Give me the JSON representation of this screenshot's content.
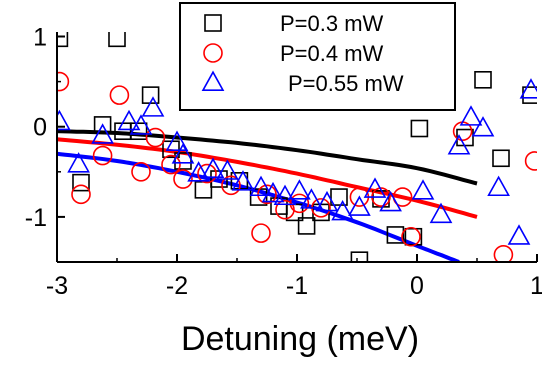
{
  "chart_data": {
    "type": "scatter",
    "xlabel": "Detuning (meV)",
    "ylabel": "",
    "xlim": [
      -3,
      1
    ],
    "ylim": [
      -1.5,
      1.05
    ],
    "xticks": [
      -3,
      -2,
      -1,
      0,
      1
    ],
    "xtick_labels": [
      "-3",
      "-2",
      "-1",
      "0",
      "1"
    ],
    "yticks": [
      -1,
      0,
      1
    ],
    "ytick_labels": [
      "-1",
      "0",
      "1"
    ],
    "legend_position": "top-center",
    "series": [
      {
        "name": "P=0.3 mW",
        "marker": "square",
        "color": "#000000",
        "points": [
          [
            -2.98,
            0.98
          ],
          [
            -2.5,
            0.98
          ],
          [
            -2.8,
            -0.62
          ],
          [
            -2.62,
            0.02
          ],
          [
            -2.45,
            -0.05
          ],
          [
            -2.32,
            -0.05
          ],
          [
            -2.22,
            0.35
          ],
          [
            -2.05,
            -0.25
          ],
          [
            -1.95,
            -0.38
          ],
          [
            -1.78,
            -0.7
          ],
          [
            -1.65,
            -0.58
          ],
          [
            -1.48,
            -0.6
          ],
          [
            -1.32,
            -0.78
          ],
          [
            -1.15,
            -0.88
          ],
          [
            -1.02,
            -0.95
          ],
          [
            -0.92,
            -1.1
          ],
          [
            -0.8,
            -0.95
          ],
          [
            -0.65,
            -0.78
          ],
          [
            -0.48,
            -1.48
          ],
          [
            -0.3,
            -0.8
          ],
          [
            -0.18,
            -1.2
          ],
          [
            -0.03,
            -1.22
          ],
          [
            0.02,
            -0.02
          ],
          [
            0.4,
            -0.12
          ],
          [
            0.55,
            0.52
          ],
          [
            0.7,
            -0.35
          ],
          [
            0.95,
            0.35
          ]
        ]
      },
      {
        "name": "P=0.4 mW",
        "marker": "circle",
        "color": "#ff0000",
        "points": [
          [
            -2.98,
            0.5
          ],
          [
            -2.8,
            -0.75
          ],
          [
            -2.62,
            -0.32
          ],
          [
            -2.48,
            0.35
          ],
          [
            -2.3,
            -0.5
          ],
          [
            -2.18,
            -0.12
          ],
          [
            -2.05,
            -0.42
          ],
          [
            -1.95,
            -0.58
          ],
          [
            -1.75,
            -0.52
          ],
          [
            -1.55,
            -0.65
          ],
          [
            -1.3,
            -1.18
          ],
          [
            -1.25,
            -0.75
          ],
          [
            -1.1,
            -0.92
          ],
          [
            -0.98,
            -0.85
          ],
          [
            -0.8,
            -0.9
          ],
          [
            -0.48,
            -0.78
          ],
          [
            -0.3,
            -0.78
          ],
          [
            -0.12,
            -0.78
          ],
          [
            -0.05,
            -1.22
          ],
          [
            0.38,
            -0.05
          ],
          [
            0.72,
            -1.42
          ],
          [
            0.98,
            -0.38
          ]
        ]
      },
      {
        "name": "P=0.55 mW",
        "marker": "triangle",
        "color": "#0000ff",
        "points": [
          [
            -2.98,
            0.05
          ],
          [
            -2.82,
            -0.42
          ],
          [
            -2.62,
            -0.1
          ],
          [
            -2.4,
            0.05
          ],
          [
            -2.3,
            0.0
          ],
          [
            -2.2,
            0.2
          ],
          [
            -2.0,
            -0.18
          ],
          [
            -1.95,
            -0.32
          ],
          [
            -1.82,
            -0.52
          ],
          [
            -1.7,
            -0.48
          ],
          [
            -1.58,
            -0.5
          ],
          [
            -1.45,
            -0.62
          ],
          [
            -1.3,
            -0.68
          ],
          [
            -1.2,
            -0.75
          ],
          [
            -1.1,
            -0.78
          ],
          [
            -0.98,
            -0.72
          ],
          [
            -0.88,
            -0.82
          ],
          [
            -0.75,
            -0.85
          ],
          [
            -0.62,
            -0.95
          ],
          [
            -0.48,
            -0.9
          ],
          [
            -0.35,
            -0.7
          ],
          [
            -0.22,
            -0.85
          ],
          [
            0.05,
            -0.72
          ],
          [
            0.2,
            -0.98
          ],
          [
            0.35,
            -0.22
          ],
          [
            0.45,
            0.1
          ],
          [
            0.55,
            -0.02
          ],
          [
            0.68,
            -0.68
          ],
          [
            0.85,
            -1.22
          ],
          [
            0.95,
            0.4
          ]
        ]
      }
    ],
    "fit_lines": [
      {
        "color": "#000000",
        "points": [
          [
            -3,
            -0.05
          ],
          [
            -2.5,
            -0.07
          ],
          [
            -2,
            -0.12
          ],
          [
            -1.5,
            -0.18
          ],
          [
            -1,
            -0.26
          ],
          [
            -0.5,
            -0.36
          ],
          [
            0,
            -0.46
          ],
          [
            0.5,
            -0.63
          ]
        ]
      },
      {
        "color": "#ff0000",
        "points": [
          [
            -3,
            -0.14
          ],
          [
            -2.5,
            -0.2
          ],
          [
            -2,
            -0.28
          ],
          [
            -1.5,
            -0.39
          ],
          [
            -1,
            -0.52
          ],
          [
            -0.5,
            -0.67
          ],
          [
            0,
            -0.82
          ],
          [
            0.5,
            -1.0
          ]
        ]
      },
      {
        "color": "#0000ff",
        "points": [
          [
            -3,
            -0.3
          ],
          [
            -2.5,
            -0.38
          ],
          [
            -2,
            -0.5
          ],
          [
            -1.5,
            -0.65
          ],
          [
            -1,
            -0.84
          ],
          [
            -0.5,
            -1.06
          ],
          [
            0,
            -1.32
          ],
          [
            0.35,
            -1.5
          ]
        ]
      }
    ]
  }
}
